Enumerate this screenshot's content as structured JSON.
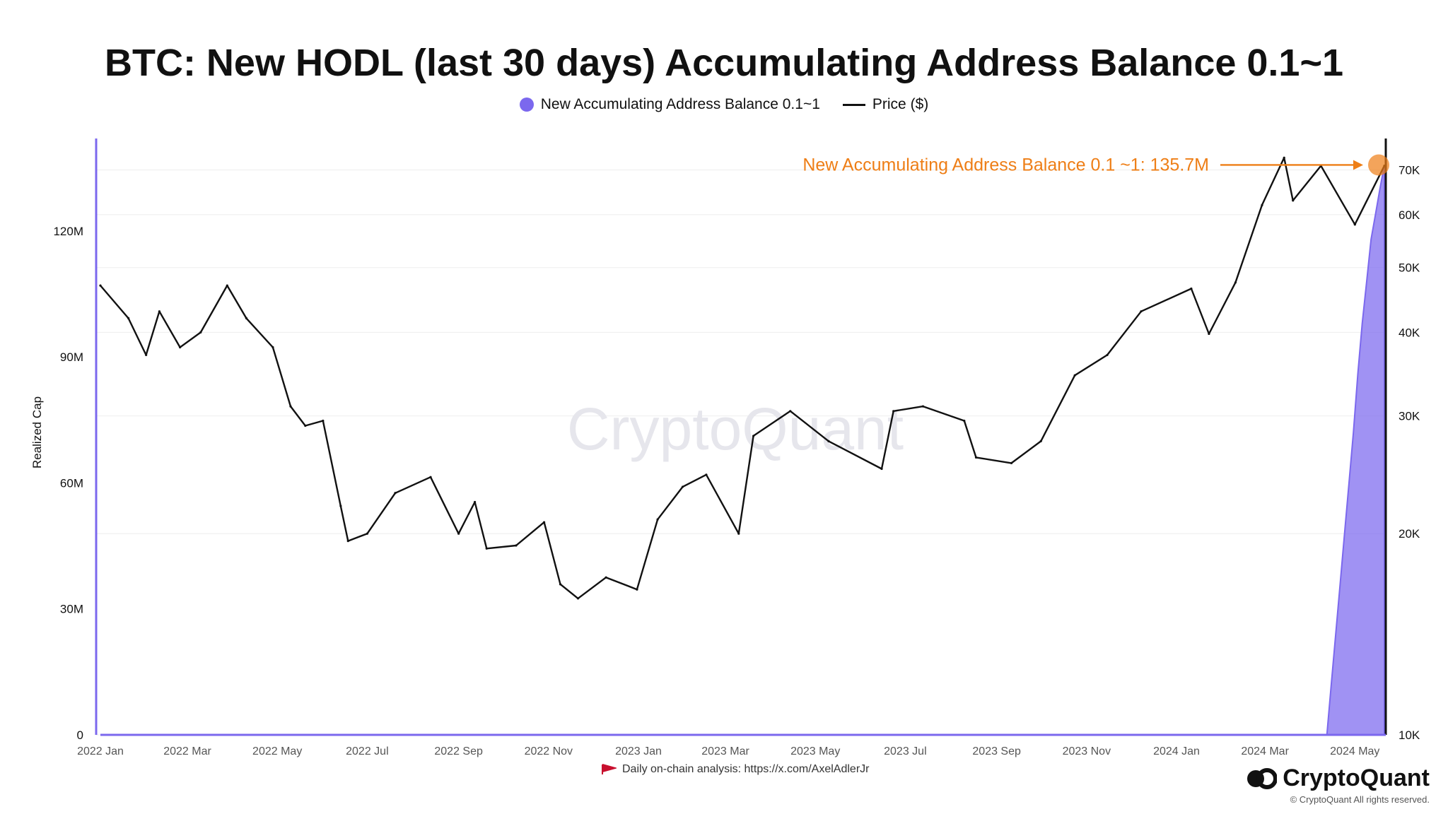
{
  "chart_data": {
    "type": "line",
    "title": "BTC: New HODL (last 30 days) Accumulating Address Balance 0.1~1",
    "ylabel": "Realized Cap",
    "y_left_ticks": [
      "0",
      "30M",
      "60M",
      "90M",
      "120M"
    ],
    "ylim_left": [
      0,
      142000000
    ],
    "y_right_ticks": [
      "10K",
      "20K",
      "30K",
      "40K",
      "50K",
      "60K",
      "70K"
    ],
    "y_right_scale": "log",
    "ylim_right": [
      10000,
      78000
    ],
    "x_ticks": [
      "2022 Jan",
      "2022 Mar",
      "2022 May",
      "2022 Jul",
      "2022 Sep",
      "2022 Nov",
      "2023 Jan",
      "2023 Mar",
      "2023 May",
      "2023 Jul",
      "2023 Sep",
      "2023 Nov",
      "2024 Jan",
      "2024 Mar",
      "2024 May"
    ],
    "grid": true,
    "legend_position": "top-center",
    "watermark": "CryptoQuant",
    "series": [
      {
        "name": "New Accumulating Address Balance 0.1~1",
        "type": "area",
        "color": "#7b68ee",
        "axis": "left",
        "x": [
          "2024 Apr 12",
          "2024 Apr 15",
          "2024 Apr 18",
          "2024 Apr 21",
          "2024 Apr 24",
          "2024 Apr 27",
          "2024 Apr 30",
          "2024 May 3",
          "2024 May 6",
          "2024 May 9",
          "2024 May 12",
          "2024 May 15",
          "2024 May 18",
          "2024 May 21"
        ],
        "values": [
          0,
          12000000,
          24000000,
          36000000,
          48000000,
          60000000,
          72000000,
          86000000,
          98000000,
          108000000,
          118000000,
          124000000,
          130000000,
          135700000
        ]
      },
      {
        "name": "Price ($)",
        "type": "line",
        "color": "#111111",
        "axis": "right",
        "x": [
          "2022 Jan",
          "2022 Jan 20",
          "2022 Feb 1",
          "2022 Feb 10",
          "2022 Feb 24",
          "2022 Mar 10",
          "2022 Mar 28",
          "2022 Apr 10",
          "2022 Apr 28",
          "2022 May 10",
          "2022 May 20",
          "2022 Jun 1",
          "2022 Jun 13",
          "2022 Jun 18",
          "2022 Jul 1",
          "2022 Jul 20",
          "2022 Aug 13",
          "2022 Sep 1",
          "2022 Sep 12",
          "2022 Sep 20",
          "2022 Oct 10",
          "2022 Oct 29",
          "2022 Nov 9",
          "2022 Nov 21",
          "2022 Dec 10",
          "2022 Dec 31",
          "2023 Jan 14",
          "2023 Jan 31",
          "2023 Feb 16",
          "2023 Mar 10",
          "2023 Mar 20",
          "2023 Apr 14",
          "2023 May 10",
          "2023 Jun 15",
          "2023 Jun 23",
          "2023 Jul 13",
          "2023 Aug 10",
          "2023 Aug 18",
          "2023 Sep 11",
          "2023 Oct 1",
          "2023 Oct 24",
          "2023 Nov 15",
          "2023 Dec 8",
          "2024 Jan 11",
          "2024 Jan 23",
          "2024 Feb 10",
          "2024 Feb 28",
          "2024 Mar 14",
          "2024 Mar 20",
          "2024 Apr 8",
          "2024 May 1",
          "2024 May 21"
        ],
        "values": [
          47000,
          42000,
          37000,
          43000,
          38000,
          40000,
          47000,
          42000,
          38000,
          31000,
          29000,
          29500,
          22000,
          19500,
          20000,
          23000,
          24300,
          20000,
          22300,
          19000,
          19200,
          20800,
          16800,
          16000,
          17200,
          16500,
          21000,
          23500,
          24500,
          20000,
          28000,
          30500,
          27500,
          25000,
          30500,
          31000,
          29500,
          26000,
          25500,
          27500,
          34500,
          37000,
          43000,
          46500,
          39800,
          47500,
          62000,
          73000,
          63000,
          71000,
          58000,
          71000
        ]
      }
    ],
    "annotations": [
      {
        "text": "New Accumulating Address Balance 0.1 ~1: 135.7M",
        "color": "#ee7e16"
      }
    ]
  },
  "footer": {
    "note": "Daily on-chain analysis: https://x.com/AxelAdlerJr",
    "brand": "CryptoQuant",
    "copyright": "© CryptoQuant All rights reserved."
  },
  "colors": {
    "area": "#7b68ee",
    "price": "#111111",
    "annotation": "#ee7e16",
    "axis_left": "#7b68ee",
    "grid": "#eeeeee"
  }
}
